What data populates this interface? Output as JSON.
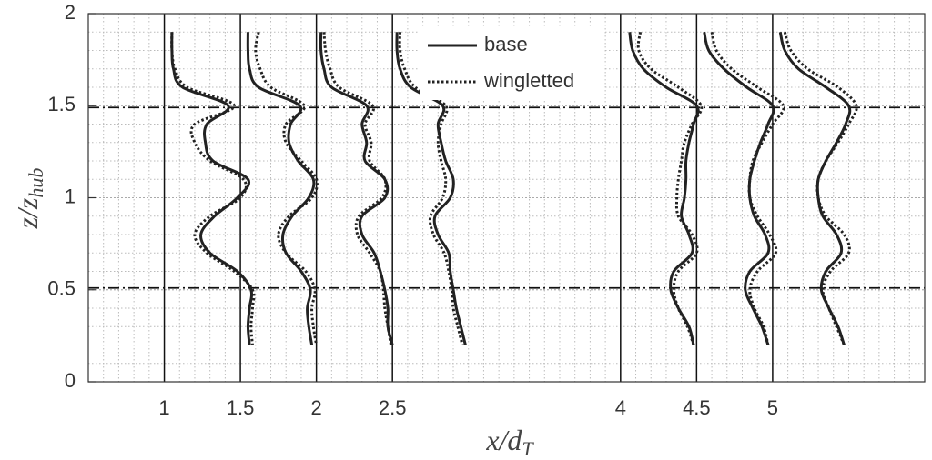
{
  "chart_data": {
    "type": "line",
    "xlabel": "x/d",
    "xlabel_sub": "T",
    "ylabel": "z/z",
    "ylabel_sub": "hub",
    "xlim": [
      0.5,
      6
    ],
    "ylim": [
      0,
      2
    ],
    "xticks": [
      1,
      1.5,
      2,
      2.5,
      4,
      4.5,
      5
    ],
    "yticks": [
      0,
      0.5,
      1,
      1.5,
      2
    ],
    "hlines": [
      1.49,
      0.51
    ],
    "grid": true,
    "minor_grid": true,
    "legend": "top",
    "series": [
      {
        "name": "base",
        "color": "#222222",
        "dash": "solid",
        "x": [
          1.05,
          1.05,
          1.06,
          1.12,
          1.42,
          1.28,
          1.27,
          1.32,
          1.55,
          1.48,
          1.33,
          1.24,
          1.3,
          1.48,
          1.57,
          1.56,
          1.55,
          1.56,
          null,
          1.55,
          1.55,
          1.56,
          1.62,
          1.89,
          1.83,
          1.82,
          1.88,
          1.98,
          1.95,
          1.84,
          1.78,
          1.8,
          1.9,
          1.96,
          1.94,
          1.95,
          1.97,
          null,
          2.03,
          2.03,
          2.05,
          2.1,
          2.33,
          2.3,
          2.33,
          2.32,
          2.45,
          2.45,
          2.3,
          2.3,
          2.38,
          2.42,
          2.45,
          2.47,
          2.47,
          2.5,
          null,
          2.53,
          2.53,
          2.55,
          2.62,
          2.83,
          2.8,
          2.82,
          2.85,
          2.9,
          2.88,
          2.78,
          2.8,
          2.87,
          2.88,
          2.9,
          2.92,
          2.95,
          2.98,
          null,
          4.06,
          4.08,
          4.15,
          4.3,
          4.5,
          4.48,
          4.45,
          4.43,
          4.43,
          4.42,
          4.4,
          4.45,
          4.47,
          4.35,
          4.33,
          4.38,
          4.45,
          4.48,
          null,
          4.55,
          4.58,
          4.68,
          4.83,
          5.0,
          4.97,
          4.92,
          4.88,
          4.85,
          4.85,
          4.88,
          4.95,
          4.97,
          4.85,
          4.82,
          4.87,
          4.93,
          4.97,
          null,
          5.05,
          5.08,
          5.17,
          5.35,
          5.5,
          5.48,
          5.42,
          5.35,
          5.3,
          5.3,
          5.33,
          5.42,
          5.45,
          5.35,
          5.32,
          5.37,
          5.43,
          5.47
        ],
        "y": [
          1.9,
          1.8,
          1.7,
          1.6,
          1.5,
          1.4,
          1.3,
          1.2,
          1.1,
          1,
          0.9,
          0.8,
          0.7,
          0.6,
          0.5,
          0.4,
          0.3,
          0.2,
          null,
          1.9,
          1.8,
          1.7,
          1.6,
          1.5,
          1.4,
          1.3,
          1.2,
          1.1,
          1,
          0.9,
          0.8,
          0.7,
          0.6,
          0.5,
          0.4,
          0.3,
          0.2,
          null,
          1.9,
          1.8,
          1.7,
          1.6,
          1.5,
          1.4,
          1.3,
          1.2,
          1.1,
          1,
          0.9,
          0.8,
          0.7,
          0.6,
          0.5,
          0.4,
          0.3,
          0.2,
          null,
          1.9,
          1.8,
          1.7,
          1.6,
          1.5,
          1.4,
          1.3,
          1.2,
          1.1,
          1,
          0.9,
          0.8,
          0.7,
          0.6,
          0.5,
          0.4,
          0.3,
          0.2,
          null,
          1.9,
          1.8,
          1.7,
          1.6,
          1.5,
          1.4,
          1.3,
          1.2,
          1.1,
          1,
          0.9,
          0.8,
          0.7,
          0.6,
          0.5,
          0.4,
          0.3,
          0.2,
          null,
          1.9,
          1.8,
          1.7,
          1.6,
          1.5,
          1.4,
          1.3,
          1.2,
          1.1,
          1,
          0.9,
          0.8,
          0.7,
          0.6,
          0.5,
          0.4,
          0.3,
          0.2,
          null,
          1.9,
          1.8,
          1.7,
          1.6,
          1.5,
          1.4,
          1.3,
          1.2,
          1.1,
          1,
          0.9,
          0.8,
          0.7,
          0.6,
          0.5,
          0.4,
          0.3,
          0.2
        ]
      },
      {
        "name": "wingletted",
        "color": "#222222",
        "dash": "dotted",
        "x": [
          1.05,
          1.05,
          1.07,
          1.15,
          1.46,
          1.2,
          1.2,
          1.3,
          1.52,
          1.5,
          1.3,
          1.2,
          1.28,
          1.46,
          1.58,
          1.58,
          1.57,
          1.58,
          null,
          1.62,
          1.6,
          1.63,
          1.7,
          1.92,
          1.8,
          1.8,
          1.9,
          2.0,
          1.97,
          1.82,
          1.75,
          1.8,
          1.93,
          1.99,
          1.97,
          1.98,
          2.0,
          null,
          2.05,
          2.06,
          2.09,
          2.15,
          2.37,
          2.32,
          2.36,
          2.35,
          2.45,
          2.43,
          2.28,
          2.27,
          2.35,
          2.42,
          2.44,
          2.45,
          2.47,
          2.49,
          null,
          2.55,
          2.55,
          2.58,
          2.65,
          2.85,
          2.82,
          2.8,
          2.82,
          2.85,
          2.83,
          2.75,
          2.77,
          2.84,
          2.87,
          2.89,
          2.9,
          2.93,
          2.96,
          null,
          4.13,
          4.12,
          4.2,
          4.38,
          4.53,
          4.47,
          4.42,
          4.4,
          4.38,
          4.37,
          4.38,
          4.47,
          4.5,
          4.38,
          4.35,
          4.38,
          4.44,
          4.48,
          null,
          4.6,
          4.63,
          4.73,
          4.9,
          5.07,
          5.0,
          4.93,
          4.87,
          4.85,
          4.85,
          4.9,
          4.98,
          5.02,
          4.9,
          4.85,
          4.88,
          4.94,
          4.97,
          null,
          5.08,
          5.12,
          5.23,
          5.43,
          5.55,
          5.5,
          5.43,
          5.35,
          5.3,
          5.3,
          5.35,
          5.47,
          5.5,
          5.38,
          5.33,
          5.37,
          5.42,
          5.47
        ],
        "y": [
          1.9,
          1.8,
          1.7,
          1.6,
          1.5,
          1.4,
          1.3,
          1.2,
          1.1,
          1,
          0.9,
          0.8,
          0.7,
          0.6,
          0.5,
          0.4,
          0.3,
          0.2,
          null,
          1.9,
          1.8,
          1.7,
          1.6,
          1.5,
          1.4,
          1.3,
          1.2,
          1.1,
          1,
          0.9,
          0.8,
          0.7,
          0.6,
          0.5,
          0.4,
          0.3,
          0.2,
          null,
          1.9,
          1.8,
          1.7,
          1.6,
          1.5,
          1.4,
          1.3,
          1.2,
          1.1,
          1,
          0.9,
          0.8,
          0.7,
          0.6,
          0.5,
          0.4,
          0.3,
          0.2,
          null,
          1.9,
          1.8,
          1.7,
          1.6,
          1.5,
          1.4,
          1.3,
          1.2,
          1.1,
          1,
          0.9,
          0.8,
          0.7,
          0.6,
          0.5,
          0.4,
          0.3,
          0.2,
          null,
          1.9,
          1.8,
          1.7,
          1.6,
          1.5,
          1.4,
          1.3,
          1.2,
          1.1,
          1,
          0.9,
          0.8,
          0.7,
          0.6,
          0.5,
          0.4,
          0.3,
          0.2,
          null,
          1.9,
          1.8,
          1.7,
          1.6,
          1.5,
          1.4,
          1.3,
          1.2,
          1.1,
          1,
          0.9,
          0.8,
          0.7,
          0.6,
          0.5,
          0.4,
          0.3,
          0.2,
          null,
          1.9,
          1.8,
          1.7,
          1.6,
          1.5,
          1.4,
          1.3,
          1.2,
          1.1,
          1,
          0.9,
          0.8,
          0.7,
          0.6,
          0.5,
          0.4,
          0.3,
          0.2
        ]
      }
    ]
  }
}
